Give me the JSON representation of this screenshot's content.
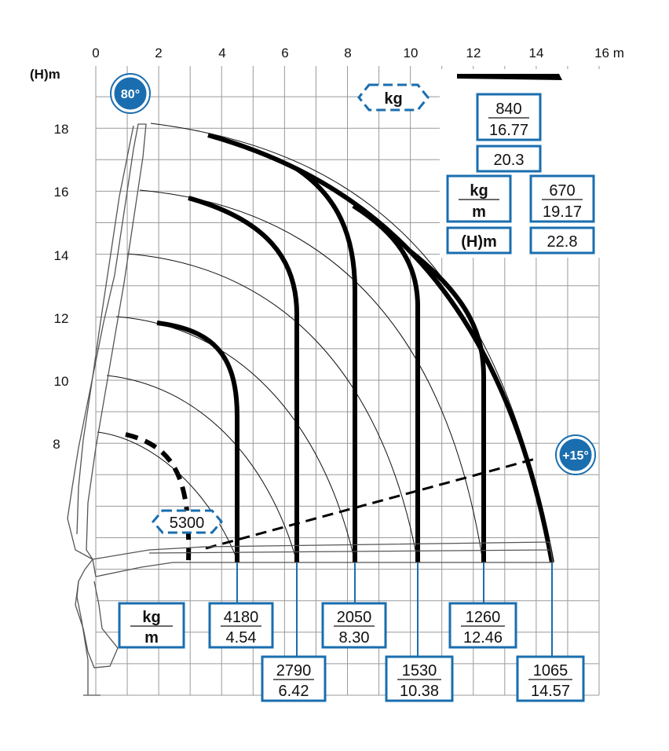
{
  "axes": {
    "x_ticks": [
      "0",
      "2",
      "4",
      "6",
      "8",
      "10",
      "12",
      "14",
      "16 m"
    ],
    "y_label": "(H)m",
    "y_ticks": [
      "18",
      "16",
      "14",
      "12",
      "10",
      "8"
    ]
  },
  "angles": {
    "max_boom": "80°",
    "min_jib": "+15°"
  },
  "legend": {
    "top_unit": "kg",
    "tip_load": "840",
    "tip_reach": "16.77",
    "tip_height": "20.3",
    "unit_kg": "kg",
    "unit_m": "m",
    "unit_h": "(H)m",
    "ext_load": "670",
    "ext_reach": "19.17",
    "ext_height": "22.8"
  },
  "bottom_unit": {
    "kg": "kg",
    "m": "m"
  },
  "inner_load": "5300",
  "colors": {
    "accent": "#1a6eaf",
    "curve": "#000000",
    "grid": "#9a9a9a"
  },
  "chart_data": {
    "type": "load-chart",
    "xlabel": "m",
    "ylabel": "(H)m",
    "xlim": [
      0,
      16
    ],
    "ylim": [
      0,
      20
    ],
    "grid": true,
    "load_points": [
      {
        "load": "4180",
        "reach": "4.54"
      },
      {
        "load": "2790",
        "reach": "6.42"
      },
      {
        "load": "2050",
        "reach": "8.30"
      },
      {
        "load": "1530",
        "reach": "10.38"
      },
      {
        "load": "1260",
        "reach": "12.46"
      },
      {
        "load": "1065",
        "reach": "14.57"
      }
    ],
    "inner_load": {
      "load": "5300",
      "reach": 2.9
    }
  }
}
